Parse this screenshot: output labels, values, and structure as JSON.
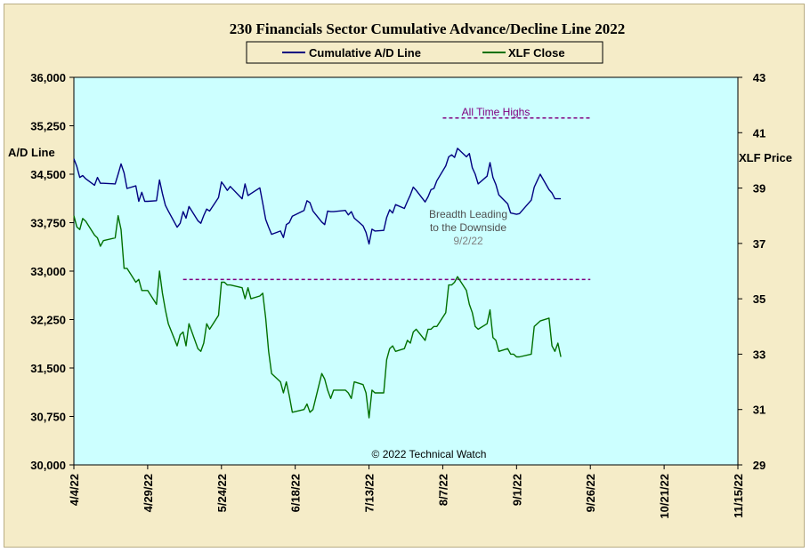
{
  "chart_data": {
    "type": "line",
    "title": "230 Financials  Sector Cumulative  Advance/Decline  Line 2022",
    "ylabel_left": "A/D Line",
    "ylabel_right": "XLF Price",
    "ylim_left": [
      30000,
      36000
    ],
    "ylim_right": [
      29,
      43
    ],
    "yticks_left": [
      30000,
      30750,
      31500,
      32250,
      33000,
      33750,
      34500,
      35250,
      36000
    ],
    "yticks_left_labels": [
      "30,000",
      "30,750",
      "31,500",
      "32,250",
      "33,000",
      "33,750",
      "34,500",
      "35,250",
      "36,000"
    ],
    "yticks_right": [
      29,
      31,
      33,
      35,
      37,
      39,
      41,
      43
    ],
    "yticks_right_labels": [
      "29",
      "31",
      "33",
      "35",
      "37",
      "39",
      "41",
      "43"
    ],
    "xlim": [
      "2022-04-04",
      "2022-11-15"
    ],
    "xtick_labels": [
      "4/4/22",
      "4/29/22",
      "5/24/22",
      "6/18/22",
      "7/13/22",
      "8/7/22",
      "9/1/22",
      "9/26/22",
      "10/21/22",
      "11/15/22"
    ],
    "legend_position": "top-center",
    "grid": false,
    "series": [
      {
        "name": "Cumulative A/D Line",
        "axis": "left",
        "color": "#000080",
        "x": [
          "2022-04-04",
          "2022-04-05",
          "2022-04-06",
          "2022-04-07",
          "2022-04-08",
          "2022-04-11",
          "2022-04-12",
          "2022-04-13",
          "2022-04-14",
          "2022-04-18",
          "2022-04-19",
          "2022-04-20",
          "2022-04-21",
          "2022-04-22",
          "2022-04-25",
          "2022-04-26",
          "2022-04-27",
          "2022-04-28",
          "2022-04-29",
          "2022-05-02",
          "2022-05-03",
          "2022-05-04",
          "2022-05-05",
          "2022-05-06",
          "2022-05-09",
          "2022-05-10",
          "2022-05-11",
          "2022-05-12",
          "2022-05-13",
          "2022-05-16",
          "2022-05-17",
          "2022-05-18",
          "2022-05-19",
          "2022-05-20",
          "2022-05-23",
          "2022-05-24",
          "2022-05-25",
          "2022-05-26",
          "2022-05-27",
          "2022-05-31",
          "2022-06-01",
          "2022-06-02",
          "2022-06-03",
          "2022-06-06",
          "2022-06-07",
          "2022-06-08",
          "2022-06-09",
          "2022-06-10",
          "2022-06-13",
          "2022-06-14",
          "2022-06-15",
          "2022-06-16",
          "2022-06-17",
          "2022-06-21",
          "2022-06-22",
          "2022-06-23",
          "2022-06-24",
          "2022-06-27",
          "2022-06-28",
          "2022-06-29",
          "2022-06-30",
          "2022-07-01",
          "2022-07-05",
          "2022-07-06",
          "2022-07-07",
          "2022-07-08",
          "2022-07-11",
          "2022-07-12",
          "2022-07-13",
          "2022-07-14",
          "2022-07-15",
          "2022-07-18",
          "2022-07-19",
          "2022-07-20",
          "2022-07-21",
          "2022-07-22",
          "2022-07-25",
          "2022-07-26",
          "2022-07-27",
          "2022-07-28",
          "2022-07-29",
          "2022-08-01",
          "2022-08-02",
          "2022-08-03",
          "2022-08-04",
          "2022-08-05",
          "2022-08-08",
          "2022-08-09",
          "2022-08-10",
          "2022-08-11",
          "2022-08-12",
          "2022-08-15",
          "2022-08-16",
          "2022-08-17",
          "2022-08-18",
          "2022-08-19",
          "2022-08-22",
          "2022-08-23",
          "2022-08-24",
          "2022-08-25",
          "2022-08-26",
          "2022-08-29",
          "2022-08-30",
          "2022-08-31",
          "2022-09-01",
          "2022-09-02",
          "2022-09-06",
          "2022-09-07",
          "2022-09-08",
          "2022-09-09",
          "2022-09-12",
          "2022-09-13",
          "2022-09-14",
          "2022-09-15",
          "2022-09-16"
        ],
        "values": [
          34740,
          34620,
          34450,
          34480,
          34430,
          34330,
          34450,
          34360,
          34360,
          34350,
          34500,
          34660,
          34520,
          34280,
          34320,
          34080,
          34220,
          34080,
          34080,
          34090,
          34410,
          34200,
          34020,
          33930,
          33680,
          33740,
          33920,
          33820,
          34000,
          33780,
          33740,
          33860,
          33960,
          33930,
          34140,
          34380,
          34320,
          34250,
          34310,
          34120,
          34350,
          34170,
          34200,
          34290,
          34050,
          33800,
          33680,
          33570,
          33620,
          33520,
          33720,
          33750,
          33850,
          33940,
          34090,
          34060,
          33930,
          33760,
          33720,
          33930,
          33920,
          33920,
          33940,
          33870,
          33920,
          33820,
          33700,
          33600,
          33420,
          33650,
          33620,
          33630,
          33830,
          33950,
          33900,
          34030,
          33970,
          34080,
          34180,
          34300,
          34250,
          34070,
          34150,
          34260,
          34280,
          34400,
          34630,
          34770,
          34800,
          34760,
          34900,
          34770,
          34820,
          34600,
          34500,
          34350,
          34470,
          34680,
          34450,
          34340,
          34180,
          34040,
          33900,
          33890,
          33880,
          33890,
          34100,
          34300,
          34400,
          34500,
          34260,
          34210,
          34120,
          34120,
          34120
        ]
      },
      {
        "name": "XLF Close",
        "axis": "right",
        "color": "#007000",
        "x": [
          "2022-04-04",
          "2022-04-05",
          "2022-04-06",
          "2022-04-07",
          "2022-04-08",
          "2022-04-11",
          "2022-04-12",
          "2022-04-13",
          "2022-04-14",
          "2022-04-18",
          "2022-04-19",
          "2022-04-20",
          "2022-04-21",
          "2022-04-22",
          "2022-04-25",
          "2022-04-26",
          "2022-04-27",
          "2022-04-28",
          "2022-04-29",
          "2022-05-02",
          "2022-05-03",
          "2022-05-04",
          "2022-05-05",
          "2022-05-06",
          "2022-05-09",
          "2022-05-10",
          "2022-05-11",
          "2022-05-12",
          "2022-05-13",
          "2022-05-16",
          "2022-05-17",
          "2022-05-18",
          "2022-05-19",
          "2022-05-20",
          "2022-05-23",
          "2022-05-24",
          "2022-05-25",
          "2022-05-26",
          "2022-05-27",
          "2022-05-31",
          "2022-06-01",
          "2022-06-02",
          "2022-06-03",
          "2022-06-06",
          "2022-06-07",
          "2022-06-08",
          "2022-06-09",
          "2022-06-10",
          "2022-06-13",
          "2022-06-14",
          "2022-06-15",
          "2022-06-16",
          "2022-06-17",
          "2022-06-21",
          "2022-06-22",
          "2022-06-23",
          "2022-06-24",
          "2022-06-27",
          "2022-06-28",
          "2022-06-29",
          "2022-06-30",
          "2022-07-01",
          "2022-07-05",
          "2022-07-06",
          "2022-07-07",
          "2022-07-08",
          "2022-07-11",
          "2022-07-12",
          "2022-07-13",
          "2022-07-14",
          "2022-07-15",
          "2022-07-18",
          "2022-07-19",
          "2022-07-20",
          "2022-07-21",
          "2022-07-22",
          "2022-07-25",
          "2022-07-26",
          "2022-07-27",
          "2022-07-28",
          "2022-07-29",
          "2022-08-01",
          "2022-08-02",
          "2022-08-03",
          "2022-08-04",
          "2022-08-05",
          "2022-08-08",
          "2022-08-09",
          "2022-08-10",
          "2022-08-11",
          "2022-08-12",
          "2022-08-15",
          "2022-08-16",
          "2022-08-17",
          "2022-08-18",
          "2022-08-19",
          "2022-08-22",
          "2022-08-23",
          "2022-08-24",
          "2022-08-25",
          "2022-08-26",
          "2022-08-29",
          "2022-08-30",
          "2022-08-31",
          "2022-09-01",
          "2022-09-02",
          "2022-09-06",
          "2022-09-07",
          "2022-09-08",
          "2022-09-09",
          "2022-09-12",
          "2022-09-13",
          "2022-09-14",
          "2022-09-15",
          "2022-09-16"
        ],
        "values": [
          38.0,
          37.6,
          37.5,
          37.9,
          37.8,
          37.3,
          37.2,
          36.9,
          37.1,
          37.2,
          38.0,
          37.5,
          36.1,
          36.1,
          35.6,
          35.7,
          35.3,
          35.3,
          35.3,
          34.8,
          36.0,
          35.2,
          34.6,
          34.1,
          33.3,
          33.7,
          33.8,
          33.3,
          34.1,
          33.2,
          33.1,
          33.4,
          34.1,
          33.9,
          34.4,
          35.6,
          35.6,
          35.5,
          35.5,
          35.4,
          35.0,
          35.4,
          35.0,
          35.1,
          35.2,
          34.3,
          33.1,
          32.3,
          32.0,
          31.6,
          32.0,
          31.5,
          30.9,
          31.0,
          31.2,
          30.9,
          31.0,
          32.3,
          32.1,
          31.7,
          31.4,
          31.7,
          31.7,
          31.6,
          31.4,
          32.0,
          31.9,
          31.6,
          30.7,
          31.7,
          31.6,
          31.6,
          32.8,
          33.2,
          33.3,
          33.1,
          33.2,
          33.5,
          33.4,
          33.8,
          33.9,
          33.5,
          33.9,
          33.9,
          34.0,
          34.0,
          34.5,
          35.5,
          35.5,
          35.6,
          35.8,
          35.3,
          34.8,
          34.5,
          34.0,
          33.9,
          34.1,
          34.6,
          33.6,
          33.5,
          33.1,
          33.2,
          33.0,
          33.0,
          32.9,
          32.9,
          33.0,
          34.0,
          34.1,
          34.2,
          34.3,
          33.3,
          33.1,
          33.4,
          32.9
        ]
      }
    ],
    "reference_lines": [
      {
        "axis": "left",
        "value": 35370,
        "x_start": "2022-08-07",
        "x_end": "2022-09-26",
        "color": "#800080",
        "style": "dashed"
      },
      {
        "axis": "right",
        "value": 35.7,
        "x_start": "2022-05-11",
        "x_end": "2022-09-26",
        "color": "#800080",
        "style": "dashed"
      }
    ],
    "annotations": [
      {
        "text": "All Time Highs",
        "color": "#800080"
      },
      {
        "text": "Breadth Leading",
        "color": "#505050"
      },
      {
        "text": "to the Downside",
        "color": "#505050"
      },
      {
        "text": "9/2/22",
        "color": "#808080"
      },
      {
        "text": "© 2022 Technical Watch",
        "color": "#000000"
      }
    ]
  }
}
